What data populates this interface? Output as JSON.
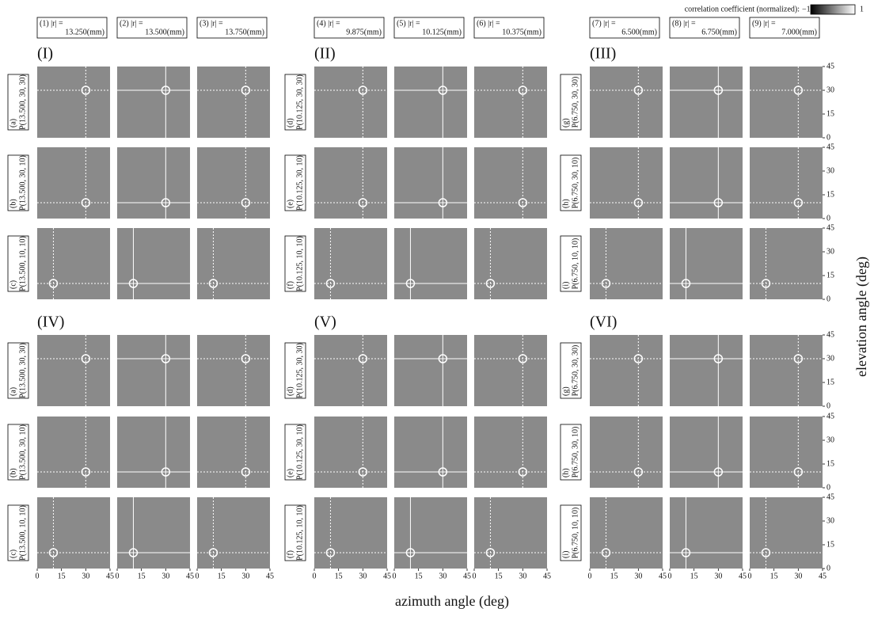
{
  "chart_data": {
    "type": "heatmap-grid",
    "colorbar": {
      "label": "correlation coefficient (normalized):",
      "min": {
        "value": -1,
        "label": "−1"
      },
      "max": 1
    },
    "columns": [
      {
        "id": "(1) |r| =",
        "r": "13.250(mm)"
      },
      {
        "id": "(2) |r| =",
        "r": "13.500(mm)"
      },
      {
        "id": "(3) |r| =",
        "r": "13.750(mm)"
      },
      {
        "id": "(4) |r| =",
        "r": "9.875(mm)"
      },
      {
        "id": "(5) |r| =",
        "r": "10.125(mm)"
      },
      {
        "id": "(6) |r| =",
        "r": "10.375(mm)"
      },
      {
        "id": "(7) |r| =",
        "r": "6.500(mm)"
      },
      {
        "id": "(8) |r| =",
        "r": "6.750(mm)"
      },
      {
        "id": "(9) |r| =",
        "r": "7.000(mm)"
      }
    ],
    "groups": [
      "(I)",
      "(II)",
      "(III)",
      "(IV)",
      "(V)",
      "(VI)"
    ],
    "row_labels": [
      [
        [
          "(a)",
          "P(13.500, 30, 30)"
        ],
        [
          "(b)",
          "P(13.500, 30, 10)"
        ],
        [
          "(c)",
          "P(13.500, 10, 10)"
        ]
      ],
      [
        [
          "(d)",
          "P(10.125, 30, 30)"
        ],
        [
          "(e)",
          "P(10.125, 30, 10)"
        ],
        [
          "(f)",
          "P(10.125, 10, 10)"
        ]
      ],
      [
        [
          "(g)",
          "P(6.750, 30, 30)"
        ],
        [
          "(h)",
          "P(6.750, 30, 10)"
        ],
        [
          "(i)",
          "P(6.750, 10, 10)"
        ]
      ]
    ],
    "targets": [
      [
        30,
        30
      ],
      [
        30,
        10
      ],
      [
        10,
        10
      ]
    ],
    "x_label": "azimuth angle (deg)",
    "y_label": "elevation angle (deg)",
    "xlim": [
      0,
      45
    ],
    "ylim": [
      0,
      45
    ],
    "xticks": [
      0,
      15,
      30,
      45
    ],
    "yticks": [
      0,
      15,
      30,
      45
    ],
    "panel_color": "#8a8a8a"
  }
}
